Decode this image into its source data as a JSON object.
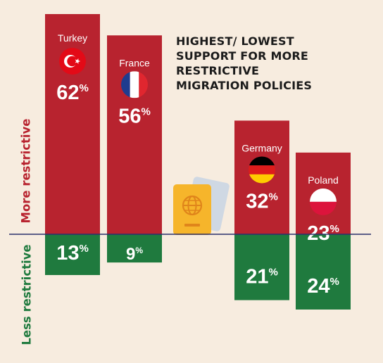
{
  "title_lines": [
    "HIGHEST/ LOWEST",
    "SUPPORT FOR MORE",
    "RESTRICTIVE",
    "MIGRATION POLICIES"
  ],
  "labels": {
    "more": "More restrictive",
    "less": "Less restrictive"
  },
  "colors": {
    "background": "#f7ecdf",
    "more": "#b8232f",
    "less": "#1f7a3e",
    "baseline": "#2a2f6b",
    "text_dark": "#1b1b1b",
    "white": "#ffffff"
  },
  "chart_data": {
    "type": "bar",
    "title": "HIGHEST/ LOWEST SUPPORT FOR MORE RESTRICTIVE MIGRATION POLICIES",
    "categories": [
      "Turkey",
      "France",
      "Germany",
      "Poland"
    ],
    "series": [
      {
        "name": "More restrictive",
        "values": [
          62,
          56,
          32,
          23
        ]
      },
      {
        "name": "Less restrictive",
        "values": [
          13,
          9,
          21,
          24
        ]
      }
    ],
    "unit": "%",
    "flag_icons": [
      "turkey-flag-icon",
      "france-flag-icon",
      "germany-flag-icon",
      "poland-flag-icon"
    ],
    "center_icon": "passport-icon"
  }
}
